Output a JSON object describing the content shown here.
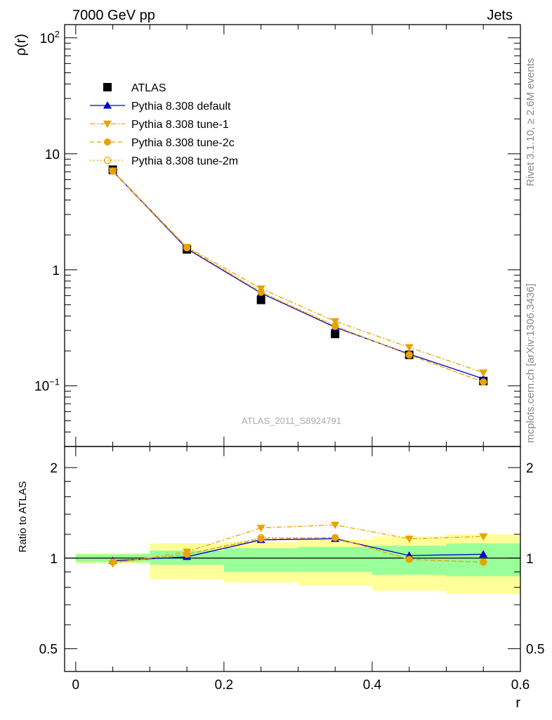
{
  "header": {
    "left": "7000 GeV pp",
    "right": "Jets",
    "side_top": "Rivet 3.1.10, ≥ 2.6M events",
    "side_bottom": "mcplots.cern.ch [arXiv:1306.3436]",
    "watermark": "ATLAS_2011_S8924791"
  },
  "chart_data": [
    {
      "type": "line",
      "panel": "main",
      "ylabel": "ρ(r)",
      "xlabel": "",
      "yscale": "log",
      "ylim": [
        0.03,
        130
      ],
      "xlim": [
        -0.015,
        0.6
      ],
      "yticks": [
        {
          "v": 0.1,
          "base": "10",
          "exp": "−1"
        },
        {
          "v": 1,
          "label": "1"
        },
        {
          "v": 10,
          "label": "10"
        },
        {
          "v": 100,
          "base": "10",
          "exp": "2"
        }
      ],
      "legend_position": "top-left",
      "x": [
        0.05,
        0.15,
        0.25,
        0.35,
        0.45,
        0.55
      ],
      "series": [
        {
          "name": "ATLAS",
          "color": "#000000",
          "marker": "square",
          "line": "none",
          "values": [
            7.3,
            1.5,
            0.55,
            0.28,
            0.185,
            0.11
          ]
        },
        {
          "name": "Pythia 8.308 default",
          "color": "#0000cc",
          "marker": "triangle-up",
          "line": "solid",
          "values": [
            7.1,
            1.52,
            0.63,
            0.32,
            0.188,
            0.115
          ]
        },
        {
          "name": "Pythia 8.308 tune-1",
          "color": "#e8a300",
          "marker": "triangle-down",
          "line": "dashdot",
          "values": [
            7.15,
            1.57,
            0.69,
            0.36,
            0.215,
            0.13
          ]
        },
        {
          "name": "Pythia 8.308 tune-2c",
          "color": "#e8a300",
          "marker": "circle",
          "line": "dashed",
          "values": [
            7.1,
            1.55,
            0.64,
            0.325,
            0.185,
            0.108
          ]
        },
        {
          "name": "Pythia 8.308 tune-2m",
          "color": "#e8a300",
          "marker": "circle-open",
          "line": "dotted",
          "values": [
            7.1,
            1.55,
            0.645,
            0.33,
            0.185,
            0.108
          ]
        }
      ]
    },
    {
      "type": "line",
      "panel": "ratio",
      "ylabel": "Ratio to ATLAS",
      "xlabel": "r",
      "yscale": "log",
      "ylim": [
        0.42,
        2.35
      ],
      "xlim": [
        -0.015,
        0.6
      ],
      "yticks": [
        {
          "v": 0.5,
          "label": "0.5"
        },
        {
          "v": 1,
          "label": "1"
        },
        {
          "v": 2,
          "label": "2"
        }
      ],
      "xticks": [
        {
          "v": 0,
          "label": "0"
        },
        {
          "v": 0.2,
          "label": "0.2"
        },
        {
          "v": 0.4,
          "label": "0.4"
        },
        {
          "v": 0.6,
          "label": "0.6"
        }
      ],
      "reference": 1,
      "x": [
        0.05,
        0.15,
        0.25,
        0.35,
        0.45,
        0.55
      ],
      "bands": {
        "edges": [
          0.0,
          0.1,
          0.2,
          0.3,
          0.4,
          0.5,
          0.6
        ],
        "green": {
          "color": "#99ff99",
          "lower": [
            0.97,
            0.95,
            0.9,
            0.9,
            0.88,
            0.87
          ],
          "upper": [
            1.03,
            1.06,
            1.08,
            1.09,
            1.1,
            1.12
          ]
        },
        "yellow": {
          "color": "#ffff99",
          "lower": [
            0.96,
            0.85,
            0.83,
            0.81,
            0.78,
            0.76
          ],
          "upper": [
            1.04,
            1.12,
            1.13,
            1.15,
            1.18,
            1.2
          ]
        }
      },
      "series": [
        {
          "name": "Pythia 8.308 default",
          "color": "#0000cc",
          "marker": "triangle-up",
          "line": "solid",
          "values": [
            0.98,
            1.01,
            1.15,
            1.16,
            1.02,
            1.03
          ]
        },
        {
          "name": "Pythia 8.308 tune-1",
          "color": "#e8a300",
          "marker": "triangle-down",
          "line": "dashdot",
          "values": [
            0.96,
            1.05,
            1.26,
            1.29,
            1.16,
            1.18
          ]
        },
        {
          "name": "Pythia 8.308 tune-2c",
          "color": "#e8a300",
          "marker": "circle",
          "line": "dashed",
          "values": [
            0.97,
            1.03,
            1.16,
            1.17,
            0.99,
            0.97
          ]
        },
        {
          "name": "Pythia 8.308 tune-2m",
          "color": "#e8a300",
          "marker": "circle-open",
          "line": "dotted",
          "values": [
            0.97,
            1.03,
            1.17,
            1.17,
            0.99,
            0.97
          ]
        }
      ]
    }
  ]
}
